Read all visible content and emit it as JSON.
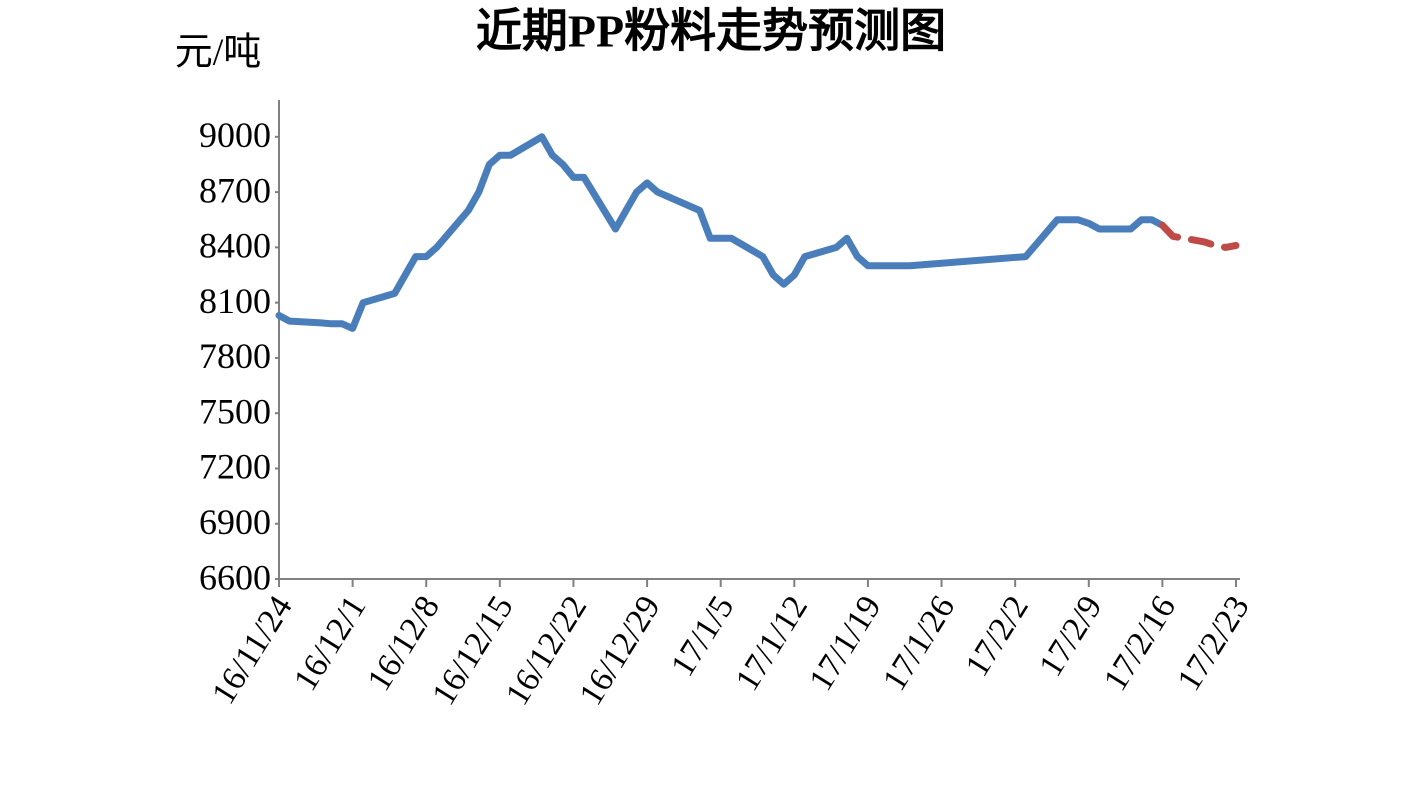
{
  "chart_data": {
    "type": "line",
    "title": "近期PP粉料走势预测图",
    "y_label": "元/吨",
    "xlim": [
      "16/11/24",
      "17/2/23"
    ],
    "xticks": [
      "16/11/24",
      "16/12/1",
      "16/12/8",
      "16/12/15",
      "16/12/22",
      "16/12/29",
      "17/1/5",
      "17/1/12",
      "17/1/19",
      "17/1/26",
      "17/2/2",
      "17/2/9",
      "17/2/16",
      "17/2/23"
    ],
    "ylim": [
      6600,
      9200
    ],
    "yticks": [
      6600,
      6900,
      7200,
      7500,
      7800,
      8100,
      8400,
      8700,
      9000
    ],
    "series": [
      {
        "color": "#4a7ebb",
        "dash": false,
        "x": [
          "16/11/24",
          "16/11/25",
          "16/11/28",
          "16/11/29",
          "16/11/30",
          "16/12/1",
          "16/12/2",
          "16/12/5",
          "16/12/6",
          "16/12/7",
          "16/12/8",
          "16/12/9",
          "16/12/12",
          "16/12/13",
          "16/12/14",
          "16/12/15",
          "16/12/16",
          "16/12/19",
          "16/12/20",
          "16/12/21",
          "16/12/22",
          "16/12/23",
          "16/12/26",
          "16/12/27",
          "16/12/28",
          "16/12/29",
          "16/12/30",
          "17/1/3",
          "17/1/4",
          "17/1/5",
          "17/1/6",
          "17/1/9",
          "17/1/10",
          "17/1/11",
          "17/1/12",
          "17/1/13",
          "17/1/16",
          "17/1/17",
          "17/1/18",
          "17/1/19",
          "17/1/20",
          "17/1/23",
          "17/2/3",
          "17/2/6",
          "17/2/7",
          "17/2/8",
          "17/2/9",
          "17/2/10",
          "17/2/13",
          "17/2/14",
          "17/2/15",
          "17/2/16"
        ],
        "values": [
          8030,
          8000,
          7990,
          7985,
          7985,
          7960,
          8100,
          8150,
          8250,
          8350,
          8350,
          8400,
          8600,
          8700,
          8850,
          8900,
          8900,
          9000,
          8900,
          8850,
          8780,
          8780,
          8500,
          8600,
          8700,
          8750,
          8700,
          8600,
          8450,
          8450,
          8450,
          8350,
          8250,
          8200,
          8250,
          8350,
          8400,
          8450,
          8350,
          8300,
          8300,
          8300,
          8350,
          8550,
          8550,
          8550,
          8530,
          8500,
          8500,
          8550,
          8550,
          8520
        ]
      },
      {
        "color": "#be4b48",
        "dash": true,
        "x": [
          "17/2/16",
          "17/2/17",
          "17/2/20",
          "17/2/21",
          "17/2/22",
          "17/2/23"
        ],
        "values": [
          8520,
          8460,
          8430,
          8410,
          8400,
          8410
        ]
      }
    ]
  }
}
